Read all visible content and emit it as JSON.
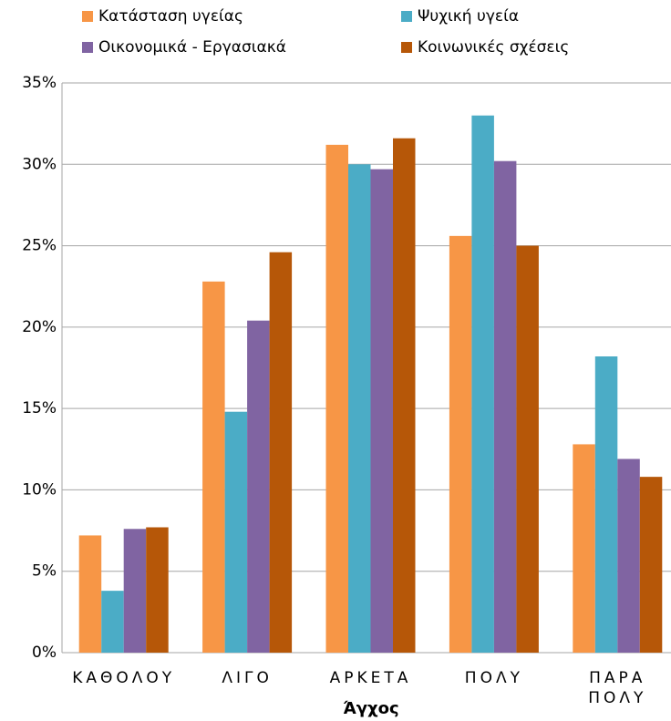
{
  "chart_data": {
    "type": "bar",
    "x_label": "Άγχος",
    "categories": [
      "ΚΑΘΟΛΟΥ",
      "ΛΙΓΟ",
      "ΑΡΚΕΤΑ",
      "ΠΟΛΥ",
      "ΠΑΡΑ ΠΟΛΥ"
    ],
    "series": [
      {
        "name": "Κατάσταση υγείας",
        "color": "#f79646",
        "values": [
          7.2,
          22.8,
          31.2,
          25.6,
          12.8
        ]
      },
      {
        "name": "Ψυχική υγεία",
        "color": "#4bacc6",
        "values": [
          3.8,
          14.8,
          30.0,
          33.0,
          18.2
        ]
      },
      {
        "name": "Οικονομικά - Εργασιακά",
        "color": "#8064a2",
        "values": [
          7.6,
          20.4,
          29.7,
          30.2,
          11.9
        ]
      },
      {
        "name": "Κοινωνικές σχέσεις",
        "color": "#b65708",
        "values": [
          7.7,
          24.6,
          31.6,
          25.0,
          10.8
        ]
      }
    ],
    "ylim": [
      0,
      35
    ],
    "yticks": [
      {
        "value": 0,
        "label": "0%"
      },
      {
        "value": 5,
        "label": "5%"
      },
      {
        "value": 10,
        "label": "10%"
      },
      {
        "value": 15,
        "label": "15%"
      },
      {
        "value": 20,
        "label": "20%"
      },
      {
        "value": 25,
        "label": "25%"
      },
      {
        "value": 30,
        "label": "30%"
      },
      {
        "value": 35,
        "label": "35%"
      }
    ],
    "grid": true
  }
}
